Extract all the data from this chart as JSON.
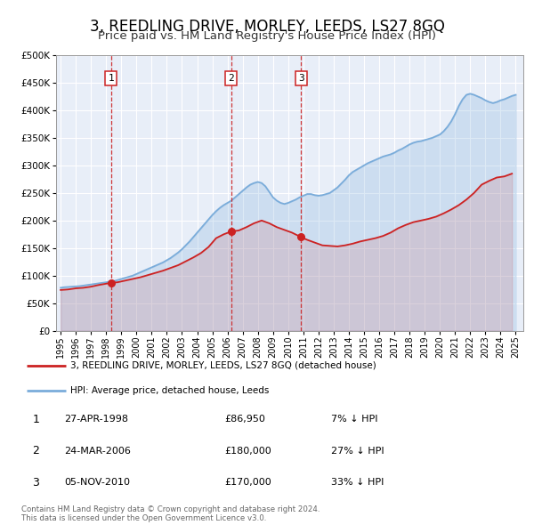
{
  "title": "3, REEDLING DRIVE, MORLEY, LEEDS, LS27 8GQ",
  "subtitle": "Price paid vs. HM Land Registry's House Price Index (HPI)",
  "title_fontsize": 12,
  "subtitle_fontsize": 9.5,
  "hpi_color": "#7aacda",
  "property_color": "#cc2222",
  "background_color": "#ffffff",
  "plot_bg_color": "#e8eef8",
  "grid_color": "#ffffff",
  "ylim": [
    0,
    500000
  ],
  "yticks": [
    0,
    50000,
    100000,
    150000,
    200000,
    250000,
    300000,
    350000,
    400000,
    450000,
    500000
  ],
  "ytick_labels": [
    "£0",
    "£50K",
    "£100K",
    "£150K",
    "£200K",
    "£250K",
    "£300K",
    "£350K",
    "£400K",
    "£450K",
    "£500K"
  ],
  "xlim_start": 1994.7,
  "xlim_end": 2025.5,
  "xtick_years": [
    1995,
    1996,
    1997,
    1998,
    1999,
    2000,
    2001,
    2002,
    2003,
    2004,
    2005,
    2006,
    2007,
    2008,
    2009,
    2010,
    2011,
    2012,
    2013,
    2014,
    2015,
    2016,
    2017,
    2018,
    2019,
    2020,
    2021,
    2022,
    2023,
    2024,
    2025
  ],
  "sale_dates": [
    1998.32,
    2006.23,
    2010.84
  ],
  "sale_prices": [
    86950,
    180000,
    170000
  ],
  "sale_labels": [
    "1",
    "2",
    "3"
  ],
  "legend_property_label": "3, REEDLING DRIVE, MORLEY, LEEDS, LS27 8GQ (detached house)",
  "legend_hpi_label": "HPI: Average price, detached house, Leeds",
  "table_rows": [
    {
      "label": "1",
      "date": "27-APR-1998",
      "price": "£86,950",
      "hpi": "7% ↓ HPI"
    },
    {
      "label": "2",
      "date": "24-MAR-2006",
      "price": "£180,000",
      "hpi": "27% ↓ HPI"
    },
    {
      "label": "3",
      "date": "05-NOV-2010",
      "price": "£170,000",
      "hpi": "33% ↓ HPI"
    }
  ],
  "footer": "Contains HM Land Registry data © Crown copyright and database right 2024.\nThis data is licensed under the Open Government Licence v3.0.",
  "hpi_x": [
    1995.0,
    1995.25,
    1995.5,
    1995.75,
    1996.0,
    1996.25,
    1996.5,
    1996.75,
    1997.0,
    1997.25,
    1997.5,
    1997.75,
    1998.0,
    1998.25,
    1998.5,
    1998.75,
    1999.0,
    1999.25,
    1999.5,
    1999.75,
    2000.0,
    2000.25,
    2000.5,
    2000.75,
    2001.0,
    2001.25,
    2001.5,
    2001.75,
    2002.0,
    2002.25,
    2002.5,
    2002.75,
    2003.0,
    2003.25,
    2003.5,
    2003.75,
    2004.0,
    2004.25,
    2004.5,
    2004.75,
    2005.0,
    2005.25,
    2005.5,
    2005.75,
    2006.0,
    2006.25,
    2006.5,
    2006.75,
    2007.0,
    2007.25,
    2007.5,
    2007.75,
    2008.0,
    2008.25,
    2008.5,
    2008.75,
    2009.0,
    2009.25,
    2009.5,
    2009.75,
    2010.0,
    2010.25,
    2010.5,
    2010.75,
    2011.0,
    2011.25,
    2011.5,
    2011.75,
    2012.0,
    2012.25,
    2012.5,
    2012.75,
    2013.0,
    2013.25,
    2013.5,
    2013.75,
    2014.0,
    2014.25,
    2014.5,
    2014.75,
    2015.0,
    2015.25,
    2015.5,
    2015.75,
    2016.0,
    2016.25,
    2016.5,
    2016.75,
    2017.0,
    2017.25,
    2017.5,
    2017.75,
    2018.0,
    2018.25,
    2018.5,
    2018.75,
    2019.0,
    2019.25,
    2019.5,
    2019.75,
    2020.0,
    2020.25,
    2020.5,
    2020.75,
    2021.0,
    2021.25,
    2021.5,
    2021.75,
    2022.0,
    2022.25,
    2022.5,
    2022.75,
    2023.0,
    2023.25,
    2023.5,
    2023.75,
    2024.0,
    2024.25,
    2024.5,
    2024.75,
    2025.0
  ],
  "hpi_y": [
    78000,
    79000,
    79500,
    80000,
    80500,
    81000,
    82000,
    83000,
    84000,
    85000,
    86000,
    87000,
    88000,
    89000,
    90000,
    92000,
    94000,
    96000,
    98000,
    100000,
    103000,
    106000,
    109000,
    112000,
    115000,
    118000,
    121000,
    124000,
    128000,
    132000,
    137000,
    142000,
    148000,
    155000,
    162000,
    170000,
    178000,
    186000,
    194000,
    202000,
    210000,
    217000,
    223000,
    228000,
    232000,
    236000,
    242000,
    248000,
    254000,
    260000,
    265000,
    268000,
    270000,
    268000,
    262000,
    252000,
    242000,
    236000,
    232000,
    230000,
    232000,
    235000,
    238000,
    242000,
    245000,
    248000,
    248000,
    246000,
    245000,
    246000,
    248000,
    250000,
    255000,
    260000,
    267000,
    274000,
    282000,
    288000,
    292000,
    296000,
    300000,
    304000,
    307000,
    310000,
    313000,
    316000,
    318000,
    320000,
    323000,
    327000,
    330000,
    334000,
    338000,
    341000,
    343000,
    344000,
    346000,
    348000,
    350000,
    353000,
    356000,
    362000,
    370000,
    380000,
    393000,
    408000,
    420000,
    428000,
    430000,
    428000,
    425000,
    422000,
    418000,
    415000,
    413000,
    415000,
    418000,
    420000,
    423000,
    426000,
    428000
  ],
  "property_x": [
    1995.0,
    1995.5,
    1996.0,
    1996.5,
    1997.0,
    1997.5,
    1998.32,
    1998.75,
    1999.25,
    1999.75,
    2000.25,
    2000.75,
    2001.25,
    2001.75,
    2002.25,
    2002.75,
    2003.25,
    2003.75,
    2004.25,
    2004.75,
    2005.25,
    2005.75,
    2006.23,
    2006.75,
    2007.25,
    2007.75,
    2008.25,
    2008.75,
    2009.25,
    2009.75,
    2010.25,
    2010.84,
    2011.25,
    2011.75,
    2012.25,
    2012.75,
    2013.25,
    2013.75,
    2014.25,
    2014.75,
    2015.25,
    2015.75,
    2016.25,
    2016.75,
    2017.25,
    2017.75,
    2018.25,
    2018.75,
    2019.25,
    2019.75,
    2020.25,
    2020.75,
    2021.25,
    2021.75,
    2022.25,
    2022.75,
    2023.25,
    2023.75,
    2024.25,
    2024.75
  ],
  "property_y": [
    74000,
    75000,
    77000,
    78000,
    80000,
    83000,
    86950,
    88000,
    91000,
    94000,
    97000,
    101000,
    105000,
    109000,
    114000,
    119000,
    126000,
    133000,
    141000,
    152000,
    168000,
    175000,
    180000,
    182000,
    188000,
    195000,
    200000,
    195000,
    188000,
    183000,
    178000,
    170000,
    165000,
    160000,
    155000,
    154000,
    153000,
    155000,
    158000,
    162000,
    165000,
    168000,
    172000,
    178000,
    186000,
    192000,
    197000,
    200000,
    203000,
    207000,
    213000,
    220000,
    228000,
    238000,
    250000,
    265000,
    272000,
    278000,
    280000,
    285000
  ]
}
